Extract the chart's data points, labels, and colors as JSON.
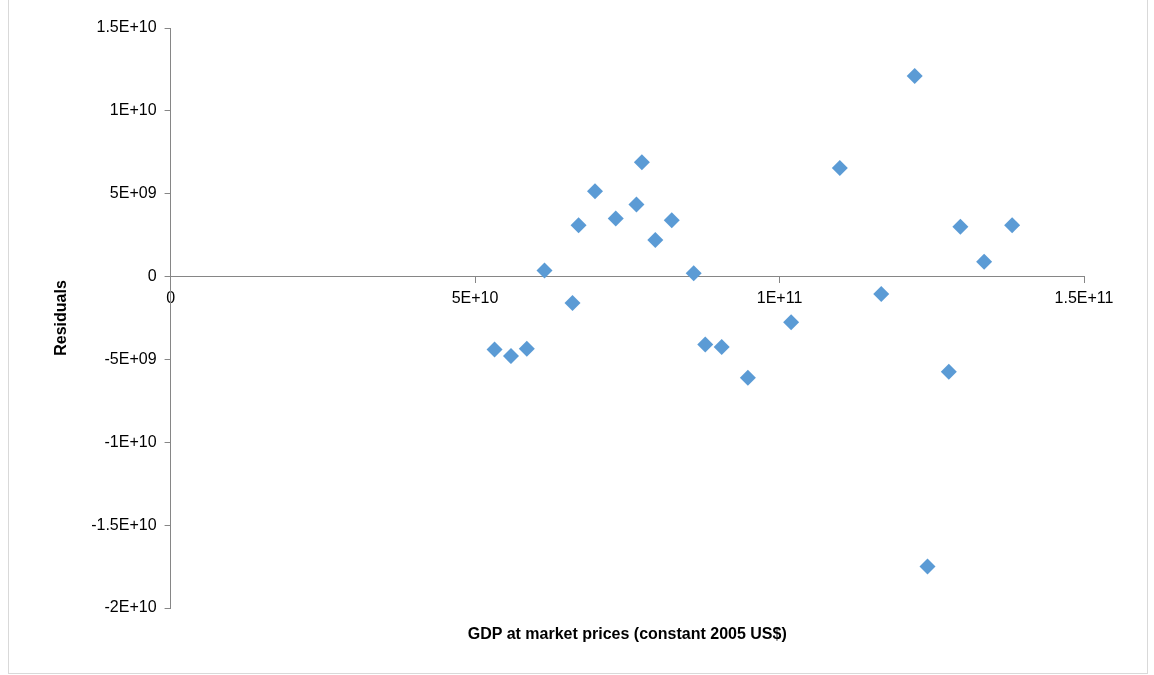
{
  "chart_data": {
    "type": "scatter",
    "xlabel": "GDP at market prices (constant 2005 US$)",
    "ylabel": "Residuals",
    "marker": "diamond",
    "grid": false,
    "legend": false,
    "xlim": [
      0,
      150000000000.0
    ],
    "xticks": [
      0,
      {
        "value": 50000000000.0,
        "label": "5E+10"
      },
      {
        "value": 100000000000.0,
        "label": "1E+11"
      },
      {
        "value": 150000000000.0,
        "label": "1.5E+11"
      }
    ],
    "ylim": [
      -20000000000.0,
      15000000000.0
    ],
    "yticks": [
      {
        "value": -20000000000.0,
        "label": "-2E+10"
      },
      {
        "value": -15000000000.0,
        "label": "-1.5E+10"
      },
      {
        "value": -10000000000.0,
        "label": "-1E+10"
      },
      {
        "value": -5000000000.0,
        "label": "-5E+09"
      },
      0,
      {
        "value": 5000000000.0,
        "label": "5E+09"
      },
      {
        "value": 10000000000.0,
        "label": "1E+10"
      },
      {
        "value": 15000000000.0,
        "label": "1.5E+10"
      }
    ],
    "series": [
      {
        "color": "#5b9bd5",
        "x": [
          53200000000.0,
          55900000000.0,
          58500000000.0,
          61400000000.0,
          66000000000.0,
          67000000000.0,
          69700000000.0,
          73100000000.0,
          76500000000.0,
          77400000000.0,
          79600000000.0,
          82300000000.0,
          85900000000.0,
          87800000000.0,
          90500000000.0,
          94800000000.0,
          101900000000.0,
          109900000000.0,
          122200000000.0,
          116700000000.0,
          129700000000.0,
          138200000000.0,
          133600000000.0,
          127800000000.0,
          124300000000.0
        ],
        "values": [
          -4400000000.0,
          -4800000000.0,
          -4350000000.0,
          370000000.0,
          -1600000000.0,
          3100000000.0,
          5150000000.0,
          3500000000.0,
          4350000000.0,
          6900000000.0,
          2200000000.0,
          3400000000.0,
          200000000.0,
          -4100000000.0,
          -4250000000.0,
          -6100000000.0,
          -2750000000.0,
          6550000000.0,
          12100000000.0,
          -1050000000.0,
          3000000000.0,
          3100000000.0,
          900000000.0,
          -5750000000.0,
          -17500000000.0
        ]
      }
    ]
  }
}
